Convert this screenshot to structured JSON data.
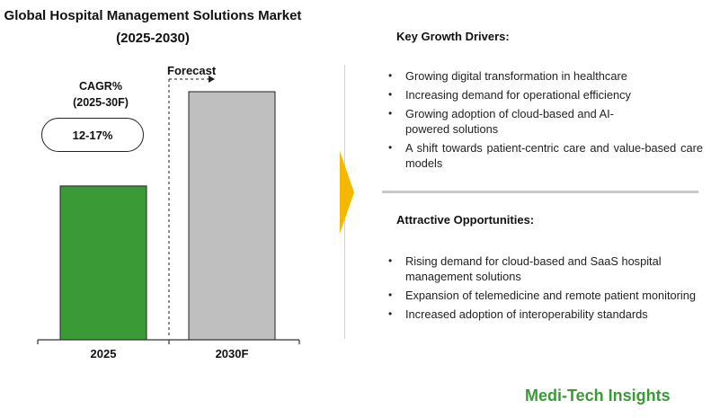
{
  "header": {
    "title_line1": "Global Hospital Management Solutions Market",
    "title_line2": "(2025-2030)"
  },
  "cagr": {
    "label_line1": "CAGR%",
    "label_line2": "(2025-30F)",
    "value": "12-17%"
  },
  "forecast_label": "Forecast",
  "chart_data": {
    "type": "bar",
    "categories": [
      "2025",
      "2030F"
    ],
    "values": [
      0.62,
      1.0
    ],
    "colors": [
      "#3a9a35",
      "#bfbfbf"
    ],
    "value_labels": false,
    "ylim": [
      0,
      1.0
    ],
    "grid": false
  },
  "key_growth_drivers": {
    "title": "Key Growth Drivers:",
    "items": [
      "Growing digital transformation in healthcare",
      "Increasing demand for operational efficiency",
      "Growing adoption of cloud-based and AI-powered solutions",
      "A shift towards patient-centric care and value-based care models"
    ]
  },
  "attractive_opportunities": {
    "title": "Attractive Opportunities:",
    "items": [
      "Rising demand for cloud-based and SaaS hospital management solutions",
      "Expansion of telemedicine and remote patient monitoring",
      "Increased adoption of interoperability standards"
    ]
  },
  "brand": "Medi-Tech Insights",
  "colors": {
    "accent_arrow": "#f5b800",
    "brand_green": "#3a9a35"
  },
  "icons": {
    "section_arrow": "arrow-right-icon"
  }
}
